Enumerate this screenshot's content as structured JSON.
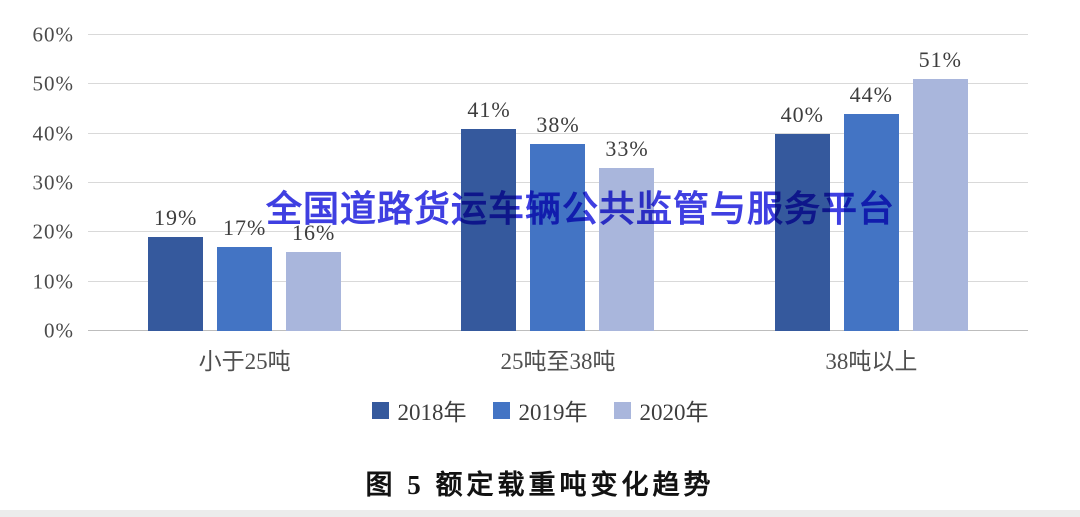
{
  "figure": {
    "caption": "图 5  额定载重吨变化趋势",
    "watermark": {
      "text": "全国道路货运车辆公共监管与服务平台",
      "color": "#3434e0"
    }
  },
  "chart_data": {
    "type": "bar",
    "title": "图 5  额定载重吨变化趋势",
    "categories": [
      "小于25吨",
      "25吨至38吨",
      "38吨以上"
    ],
    "series": [
      {
        "name": "2018年",
        "color": "#35599d",
        "values": [
          19,
          41,
          40
        ]
      },
      {
        "name": "2019年",
        "color": "#4374c4",
        "values": [
          17,
          38,
          44
        ]
      },
      {
        "name": "2020年",
        "color": "#a9b6dc",
        "values": [
          16,
          33,
          51
        ]
      }
    ],
    "unit": "%",
    "ylim": [
      0,
      60
    ],
    "ytick_step": 10,
    "ytick_labels": [
      "0%",
      "10%",
      "20%",
      "30%",
      "40%",
      "50%",
      "60%"
    ],
    "grid": true,
    "gridline_color": "#d9d9d9",
    "baseline_color": "#bdbdbd",
    "legend_position": "bottom",
    "data_labels": true
  }
}
